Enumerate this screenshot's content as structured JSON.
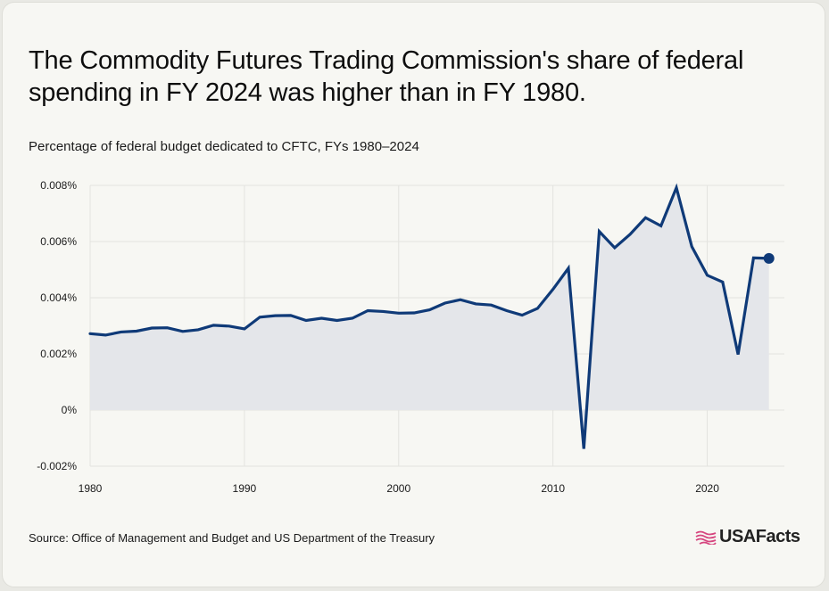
{
  "title": "The Commodity Futures Trading Commission's share of federal spending in FY 2024 was higher than in FY 1980.",
  "subtitle": "Percentage of federal budget dedicated to CFTC, FYs 1980–2024",
  "source": "Source: Office of Management and Budget and US Department of the Treasury",
  "logo": {
    "text": "USAFacts",
    "icon": "usafacts-flag-icon"
  },
  "colors": {
    "line": "#0f3a78",
    "area": "#e4e6ea",
    "grid": "#e3e3df",
    "flag": "#d6457f"
  },
  "chart_data": {
    "type": "area",
    "ylim": [
      -0.002,
      0.008
    ],
    "xlim": [
      1980,
      2025
    ],
    "y_ticks": [
      {
        "value": -0.002,
        "label": "-0.002%"
      },
      {
        "value": 0,
        "label": "0%"
      },
      {
        "value": 0.002,
        "label": "0.002%"
      },
      {
        "value": 0.004,
        "label": "0.004%"
      },
      {
        "value": 0.006,
        "label": "0.006%"
      },
      {
        "value": 0.008,
        "label": "0.008%"
      }
    ],
    "x_ticks": [
      {
        "value": 1980,
        "label": "1980"
      },
      {
        "value": 1990,
        "label": "1990"
      },
      {
        "value": 2000,
        "label": "2000"
      },
      {
        "value": 2010,
        "label": "2010"
      },
      {
        "value": 2020,
        "label": "2020"
      }
    ],
    "grid": true,
    "series": [
      {
        "x": [
          1980,
          1981,
          1982,
          1983,
          1984,
          1985,
          1986,
          1987,
          1988,
          1989,
          1990,
          1991,
          1992,
          1993,
          1994,
          1995,
          1996,
          1997,
          1998,
          1999,
          2000,
          2001,
          2002,
          2003,
          2004,
          2005,
          2006,
          2007,
          2008,
          2009,
          2010,
          2011,
          2012,
          2013,
          2014,
          2015,
          2016,
          2017,
          2018,
          2019,
          2020,
          2021,
          2022,
          2023,
          2024
        ],
        "values": [
          0.00272,
          0.00267,
          0.00278,
          0.00281,
          0.00292,
          0.00293,
          0.0028,
          0.00286,
          0.00302,
          0.00299,
          0.00289,
          0.00331,
          0.00336,
          0.00337,
          0.00319,
          0.00327,
          0.00319,
          0.00327,
          0.00354,
          0.00351,
          0.00345,
          0.00346,
          0.00357,
          0.00381,
          0.00393,
          0.00378,
          0.00374,
          0.00354,
          0.00338,
          0.00362,
          0.0043,
          0.00505,
          -0.00138,
          0.00636,
          0.00578,
          0.00626,
          0.00685,
          0.00656,
          0.00792,
          0.00582,
          0.0048,
          0.00456,
          0.00198,
          0.00542,
          0.0054
        ]
      }
    ]
  }
}
